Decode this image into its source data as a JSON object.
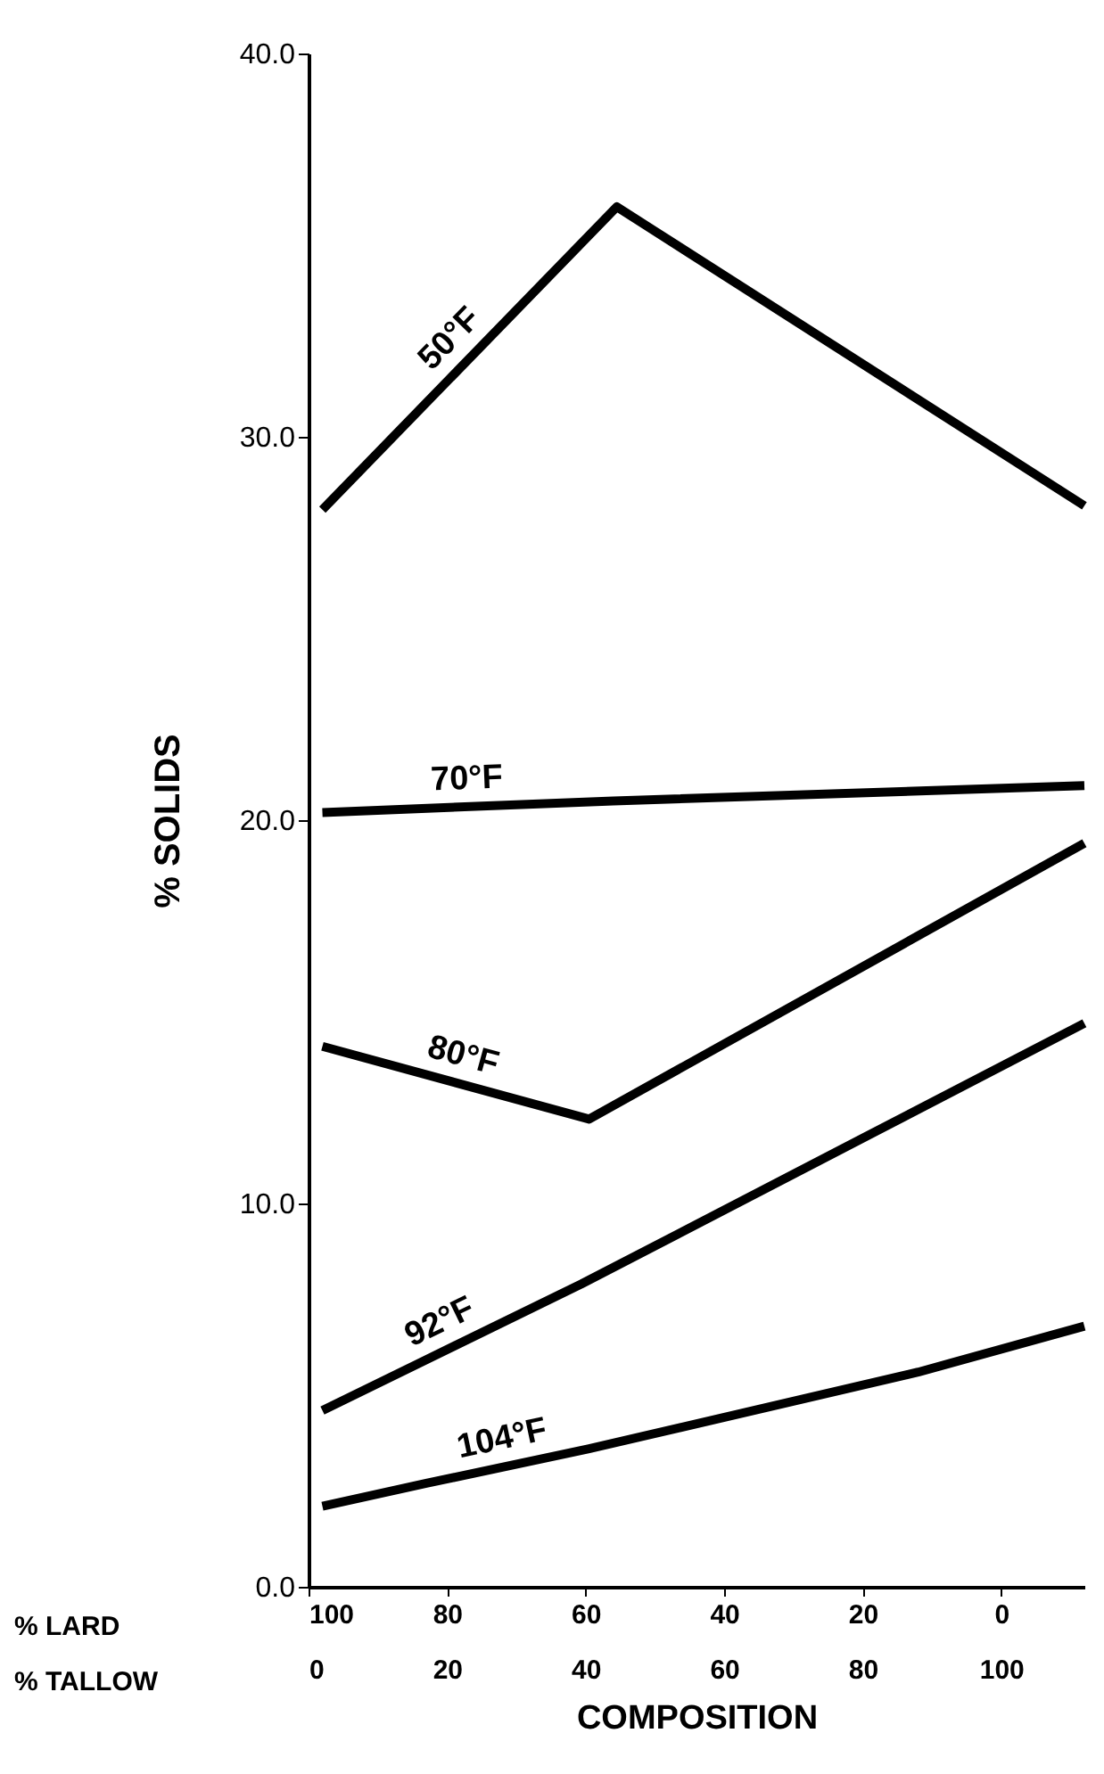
{
  "chart_data": {
    "type": "line",
    "xlabel": "COMPOSITION",
    "ylabel": "% SOLIDS",
    "x2label": "% LARD",
    "annotations": [
      "% TALLOW"
    ],
    "xlim": [
      0,
      112
    ],
    "xticks": [
      0,
      20,
      40,
      60,
      80,
      100
    ],
    "x2lim": [
      100,
      -12
    ],
    "x2ticks": [
      100,
      80,
      60,
      40,
      20,
      0
    ],
    "ylim": [
      0,
      40
    ],
    "yticks": [
      {
        "value": 0,
        "label": "0.0"
      },
      {
        "value": 10,
        "label": "10.0"
      },
      {
        "value": 20,
        "label": "20.0"
      },
      {
        "value": 30,
        "label": "30.0"
      },
      {
        "value": 40,
        "label": "40.0"
      }
    ],
    "grid": false,
    "line_style": "solid",
    "series": [
      {
        "name": "50°F",
        "color": "#000000",
        "x": [
          2,
          44.5,
          112
        ],
        "values": [
          28.1,
          36.0,
          28.2
        ]
      },
      {
        "name": "70°F",
        "color": "#000000",
        "x": [
          2,
          44,
          112
        ],
        "values": [
          20.2,
          20.5,
          20.9
        ]
      },
      {
        "name": "80°F",
        "color": "#000000",
        "x": [
          2,
          40.5,
          112
        ],
        "values": [
          14.1,
          12.2,
          19.4
        ]
      },
      {
        "name": "92°F",
        "color": "#000000",
        "x": [
          2,
          39.4,
          112
        ],
        "values": [
          4.6,
          7.9,
          14.7
        ]
      },
      {
        "name": "104°F",
        "color": "#000000",
        "x": [
          2,
          17,
          40.5,
          88,
          112
        ],
        "values": [
          2.1,
          2.7,
          3.6,
          5.6,
          6.8
        ]
      }
    ]
  }
}
